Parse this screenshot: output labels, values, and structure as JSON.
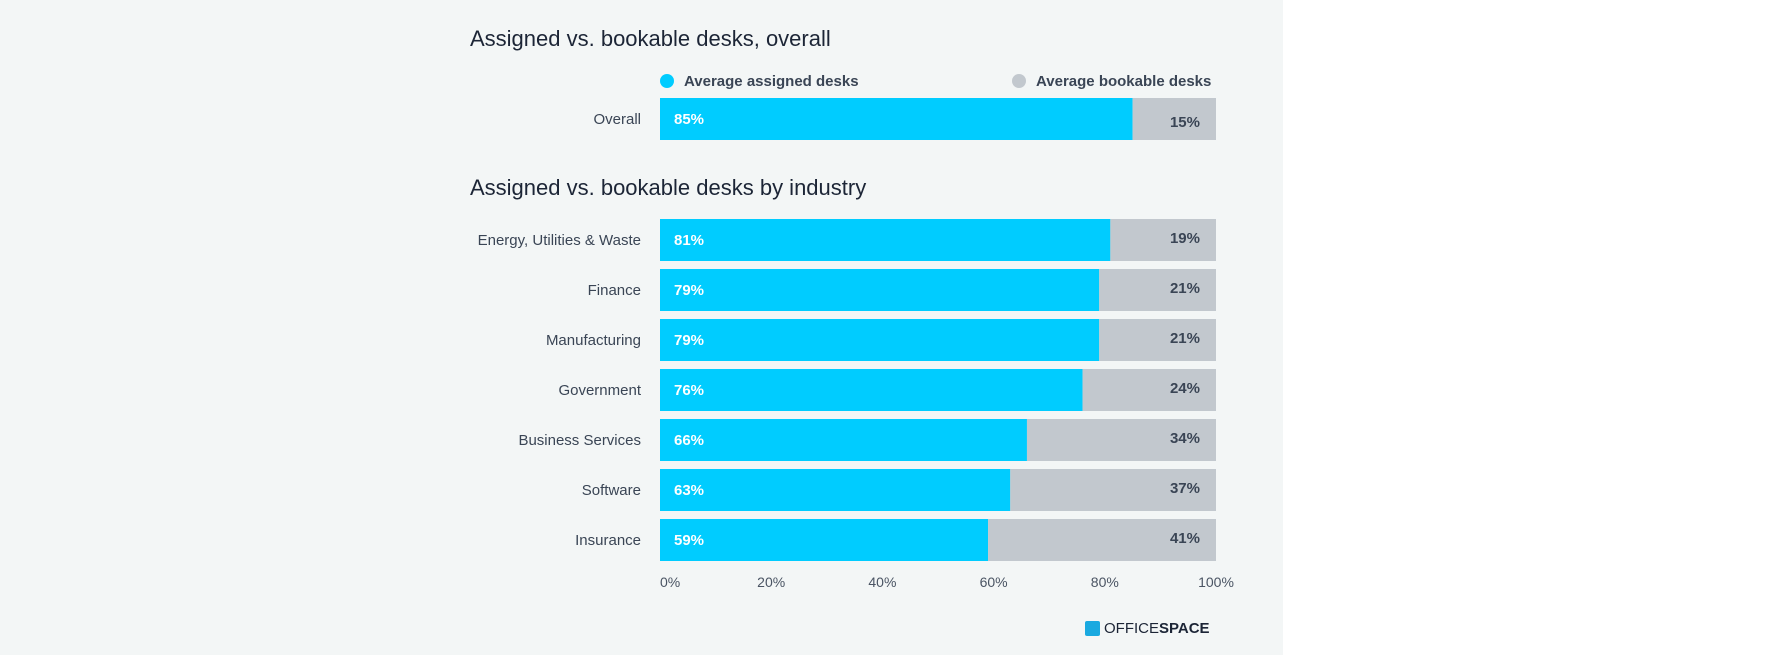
{
  "colors": {
    "assigned": "#00ccff",
    "bookable": "#c2c8ce",
    "background": "#f3f6f6",
    "text": "#1c2536",
    "axis_text": "#4a5463",
    "logo_mark": "#19a9e0"
  },
  "legend": {
    "assigned": "Average assigned desks",
    "bookable": "Average bookable desks"
  },
  "logo": {
    "icon": "officespace-logo-icon",
    "word1": "OFFICE",
    "word2": "SPACE"
  },
  "chart_data": [
    {
      "type": "bar",
      "orientation": "horizontal",
      "stacked": true,
      "title": "Assigned vs. bookable desks, overall",
      "categories": [
        "Overall"
      ],
      "series": [
        {
          "name": "Average assigned desks",
          "values": [
            85
          ],
          "labels": [
            "85%"
          ]
        },
        {
          "name": "Average bookable desks",
          "values": [
            15
          ],
          "labels": [
            "15%"
          ]
        }
      ],
      "xlim": [
        0,
        100
      ],
      "legend": "top"
    },
    {
      "type": "bar",
      "orientation": "horizontal",
      "stacked": true,
      "title": "Assigned vs. bookable desks by industry",
      "categories": [
        "Energy, Utilities & Waste",
        "Finance",
        "Manufacturing",
        "Government",
        "Business Services",
        "Software",
        "Insurance"
      ],
      "series": [
        {
          "name": "Average assigned desks",
          "values": [
            81,
            79,
            79,
            76,
            66,
            63,
            59
          ],
          "labels": [
            "81%",
            "79%",
            "79%",
            "76%",
            "66%",
            "63%",
            "59%"
          ]
        },
        {
          "name": "Average bookable desks",
          "values": [
            19,
            21,
            21,
            24,
            34,
            37,
            41
          ],
          "labels": [
            "19%",
            "21%",
            "21%",
            "24%",
            "34%",
            "37%",
            "41%"
          ]
        }
      ],
      "xlim": [
        0,
        100
      ],
      "xticks": [
        "0%",
        "20%",
        "40%",
        "60%",
        "80%",
        "100%"
      ],
      "grid": false
    }
  ]
}
